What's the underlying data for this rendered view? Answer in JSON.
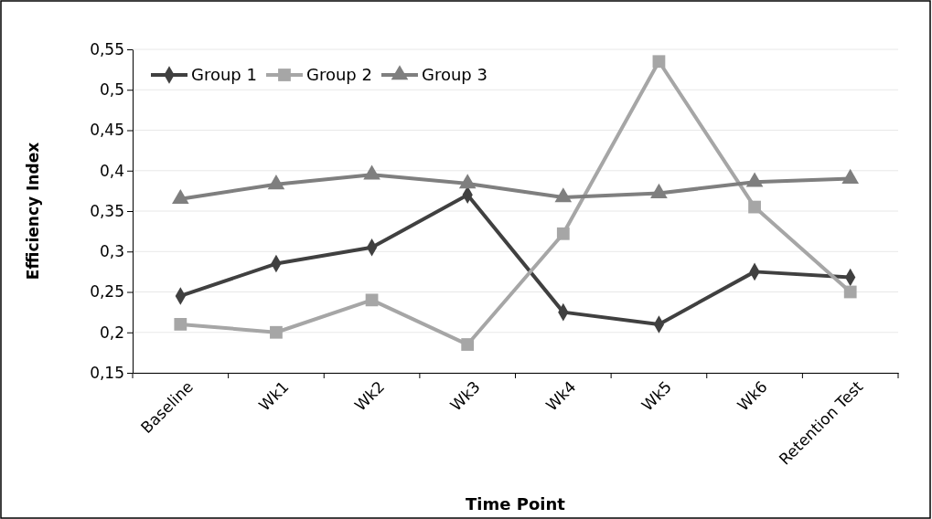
{
  "chart_data": {
    "type": "line",
    "xlabel": "Time Point",
    "ylabel": "Efficiency Index",
    "categories": [
      "Baseline",
      "Wk1",
      "Wk2",
      "Wk3",
      "Wk4",
      "Wk5",
      "Wk6",
      "Retention Test"
    ],
    "series": [
      {
        "name": "Group 1",
        "color": "#404040",
        "marker": "diamond",
        "values": [
          0.245,
          0.285,
          0.305,
          0.37,
          0.225,
          0.21,
          0.275,
          0.268
        ]
      },
      {
        "name": "Group 2",
        "color": "#a6a6a6",
        "marker": "square",
        "values": [
          0.21,
          0.2,
          0.24,
          0.185,
          0.322,
          0.535,
          0.355,
          0.25
        ]
      },
      {
        "name": "Group 3",
        "color": "#7f7f7f",
        "marker": "triangle",
        "values": [
          0.365,
          0.383,
          0.395,
          0.384,
          0.367,
          0.372,
          0.386,
          0.39
        ]
      }
    ],
    "ylim": [
      0.15,
      0.55
    ],
    "yticks": [
      {
        "value": 0.15,
        "label": "0,15"
      },
      {
        "value": 0.2,
        "label": "0,2"
      },
      {
        "value": 0.25,
        "label": "0,25"
      },
      {
        "value": 0.3,
        "label": "0,3"
      },
      {
        "value": 0.35,
        "label": "0,35"
      },
      {
        "value": 0.4,
        "label": "0,4"
      },
      {
        "value": 0.45,
        "label": "0,45"
      },
      {
        "value": 0.5,
        "label": "0,5"
      },
      {
        "value": 0.55,
        "label": "0,55"
      }
    ],
    "grid": "y",
    "legend": "top left",
    "line_style": "solid"
  }
}
